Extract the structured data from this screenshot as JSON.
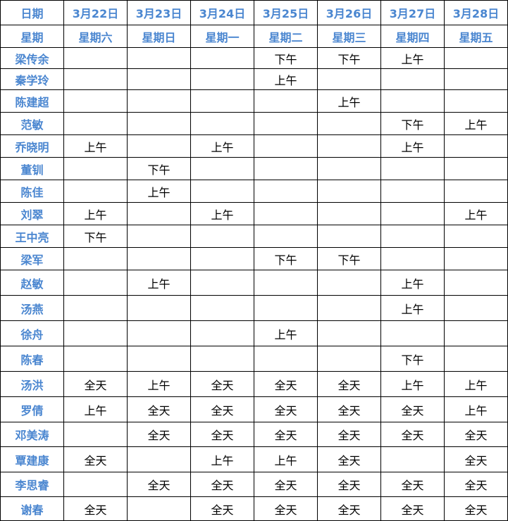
{
  "header": {
    "date_label": "日期",
    "weekday_label": "星期",
    "dates": [
      "3月22日",
      "3月23日",
      "3月24日",
      "3月25日",
      "3月26日",
      "3月27日",
      "3月28日"
    ],
    "weekdays": [
      "星期六",
      "星期日",
      "星期一",
      "星期二",
      "星期三",
      "星期四",
      "星期五"
    ]
  },
  "rows": [
    {
      "name": "梁传余",
      "cells": [
        "",
        "",
        "",
        "下午",
        "下午",
        "上午",
        ""
      ]
    },
    {
      "name": "秦学玲",
      "cells": [
        "",
        "",
        "",
        "上午",
        "",
        "",
        ""
      ]
    },
    {
      "name": "陈建超",
      "cells": [
        "",
        "",
        "",
        "",
        "上午",
        "",
        ""
      ]
    },
    {
      "name": "范敏",
      "cells": [
        "",
        "",
        "",
        "",
        "",
        "下午",
        "上午"
      ]
    },
    {
      "name": "乔晓明",
      "cells": [
        "上午",
        "",
        "上午",
        "",
        "",
        "上午",
        ""
      ]
    },
    {
      "name": "董钏",
      "cells": [
        "",
        "下午",
        "",
        "",
        "",
        "",
        ""
      ]
    },
    {
      "name": "陈佳",
      "cells": [
        "",
        "上午",
        "",
        "",
        "",
        "",
        ""
      ]
    },
    {
      "name": "刘翠",
      "cells": [
        "上午",
        "",
        "上午",
        "",
        "",
        "",
        "上午"
      ]
    },
    {
      "name": "王中亮",
      "cells": [
        "下午",
        "",
        "",
        "",
        "",
        "",
        ""
      ]
    },
    {
      "name": "梁军",
      "cells": [
        "",
        "",
        "",
        "下午",
        "下午",
        "",
        ""
      ]
    },
    {
      "name": "赵敏",
      "cells": [
        "",
        "上午",
        "",
        "",
        "",
        "上午",
        ""
      ]
    },
    {
      "name": "汤燕",
      "cells": [
        "",
        "",
        "",
        "",
        "",
        "上午",
        ""
      ]
    },
    {
      "name": "徐舟",
      "cells": [
        "",
        "",
        "",
        "上午",
        "",
        "",
        ""
      ]
    },
    {
      "name": "陈春",
      "cells": [
        "",
        "",
        "",
        "",
        "",
        "下午",
        ""
      ]
    },
    {
      "name": "汤洪",
      "cells": [
        "全天",
        "上午",
        "全天",
        "全天",
        "全天",
        "上午",
        "上午"
      ]
    },
    {
      "name": "罗倩",
      "cells": [
        "上午",
        "全天",
        "全天",
        "全天",
        "全天",
        "全天",
        "上午"
      ]
    },
    {
      "name": "邓美涛",
      "cells": [
        "",
        "全天",
        "全天",
        "全天",
        "全天",
        "全天",
        "全天"
      ]
    },
    {
      "name": "覃建康",
      "cells": [
        "全天",
        "",
        "上午",
        "上午",
        "全天",
        "",
        "全天"
      ]
    },
    {
      "name": "李思睿",
      "cells": [
        "",
        "全天",
        "全天",
        "全天",
        "全天",
        "全天",
        "全天"
      ]
    },
    {
      "name": "谢春",
      "cells": [
        "全天",
        "",
        "全天",
        "全天",
        "全天",
        "全天",
        "全天"
      ]
    }
  ]
}
